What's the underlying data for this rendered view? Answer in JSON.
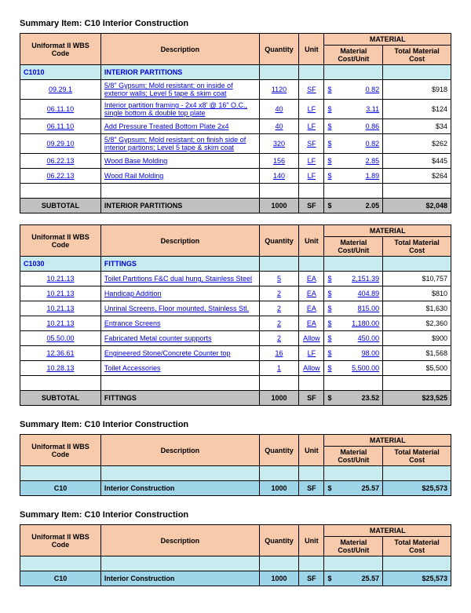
{
  "colors": {
    "peach": "#f7caac",
    "sectionBg": "#c8ebf0",
    "subtotalBg": "#c0c0c0",
    "totalBg": "#9ed5e8",
    "linkBlue": "#0000d8"
  },
  "columns": {
    "code": "Uniformat II WBS Code",
    "desc": "Description",
    "qty": "Quantity",
    "unit": "Unit",
    "materialGroup": "MATERIAL",
    "cpu": "Material Cost/Unit",
    "total": "Total Material Cost"
  },
  "labels": {
    "summaryPrefix": "Summary Item:",
    "subtotal": "SUBTOTAL",
    "currency": "$"
  },
  "blocks": [
    {
      "title": "C10  Interior Construction",
      "section": {
        "code": "C1010",
        "name": "INTERIOR PARTITIONS"
      },
      "rows": [
        {
          "code": "09.29.1",
          "desc": "5/8\" Gypsum; Mold resistant; on inside of exterior walls; Level 5 tape & skim coat",
          "qty": "1120",
          "unit": "SF",
          "cpu": "0.82",
          "total": "$918"
        },
        {
          "code": "06.11.10",
          "desc": "Interior partition framing - 2x4 x8' @ 16\" O.C., single bottom & double top plate",
          "qty": "40",
          "unit": "LF",
          "cpu": "3.11",
          "total": "$124"
        },
        {
          "code": "06.11.10",
          "desc": "Add Pressure Treated Bottom Plate 2x4",
          "qty": "40",
          "unit": "LF",
          "cpu": "0.86",
          "total": "$34"
        },
        {
          "code": "09.29.10",
          "desc": "5/8\" Gypsum; Mold resistant; on finish side of interior partions; Level 5 tape & skim coat",
          "qty": "320",
          "unit": "SF",
          "cpu": "0.82",
          "total": "$262"
        },
        {
          "code": "06.22.13",
          "desc": "Wood Base Molding",
          "qty": "156",
          "unit": "LF",
          "cpu": "2.85",
          "total": "$445"
        },
        {
          "code": "06.22.13",
          "desc": "Wood Rail Molding",
          "qty": "140",
          "unit": "LF",
          "cpu": "1.89",
          "total": "$264"
        }
      ],
      "subtotal": {
        "name": "INTERIOR PARTITIONS",
        "qty": "1000",
        "unit": "SF",
        "cpu": "2.05",
        "total": "$2,048"
      }
    },
    {
      "title": null,
      "section": {
        "code": "C1030",
        "name": "FITTINGS"
      },
      "rows": [
        {
          "code": "10.21.13",
          "desc": "Toilet Partitions F&C dual hung, Stainless Steel",
          "qty": "5",
          "unit": "EA",
          "cpu": "2,151.39",
          "total": "$10,757"
        },
        {
          "code": "10.21.13",
          "desc": "Handicap Addition",
          "qty": "2",
          "unit": "EA",
          "cpu": "404.89",
          "total": "$810"
        },
        {
          "code": "10.21.13",
          "desc": "Unrinal Screens, Floor mounted, Stainless Stl.",
          "qty": "2",
          "unit": "EA",
          "cpu": "815.00",
          "total": "$1,630"
        },
        {
          "code": "10.21.13",
          "desc": "Entrance Screens",
          "qty": "2",
          "unit": "EA",
          "cpu": "1,180.00",
          "total": "$2,360"
        },
        {
          "code": "05.50.00",
          "desc": "Fabricated Metal counter supports",
          "qty": "2",
          "unit": "Allow",
          "cpu": "450.00",
          "total": "$900"
        },
        {
          "code": "12.36.61",
          "desc": "Engineered Stone/Concrete Counter top",
          "qty": "16",
          "unit": "LF",
          "cpu": "98.00",
          "total": "$1,568"
        },
        {
          "code": "10.28.13",
          "desc": "Toilet Accessories",
          "qty": "1",
          "unit": "Allow",
          "cpu": "5,500.00",
          "total": "$5,500"
        }
      ],
      "subtotal": {
        "name": "FITTINGS",
        "qty": "1000",
        "unit": "SF",
        "cpu": "23.52",
        "total": "$23,525"
      }
    },
    {
      "title": "C10  Interior Construction",
      "section": null,
      "rows": [],
      "total": {
        "code": "C10",
        "name": "Interior Construction",
        "qty": "1000",
        "unit": "SF",
        "cpu": "25.57",
        "total": "$25,573"
      }
    },
    {
      "title": "C10  Interior Construction",
      "section": null,
      "rows": [],
      "total": {
        "code": "C10",
        "name": "Interior Construction",
        "qty": "1000",
        "unit": "SF",
        "cpu": "25.57",
        "total": "$25,573"
      }
    }
  ]
}
